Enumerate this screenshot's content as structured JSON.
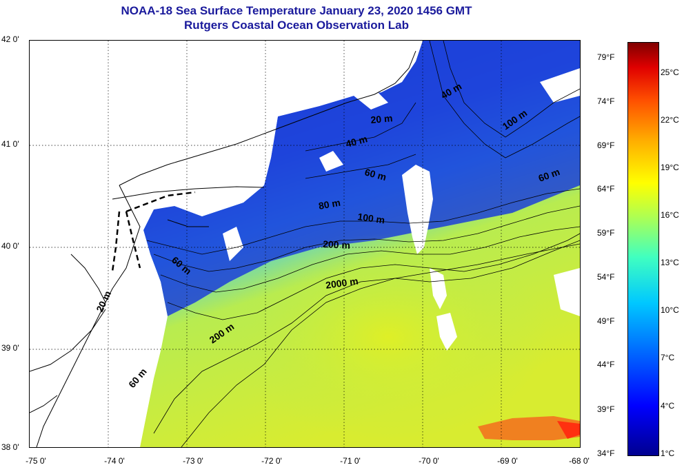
{
  "title": "NOAA-18 Sea Surface Temperature January 23, 2020 1456 GMT",
  "subtitle": "Rutgers Coastal Ocean Observation Lab",
  "lat_labels": [
    "42 0'",
    "41 0'",
    "40 0'",
    "39 0'",
    "38 0'"
  ],
  "lon_labels": [
    "-75 0'",
    "-74 0'",
    "-73 0'",
    "-72 0'",
    "-71 0'",
    "-70 0'",
    "-69 0'",
    "-68 0'"
  ],
  "colorbar": {
    "fahrenheit": [
      "79°F",
      "74°F",
      "69°F",
      "64°F",
      "59°F",
      "54°F",
      "49°F",
      "44°F",
      "39°F",
      "34°F"
    ],
    "celsius": [
      "25°C",
      "22°C",
      "19°C",
      "16°C",
      "13°C",
      "10°C",
      "7°C",
      "4°C",
      "1°C"
    ]
  },
  "contour_labels": [
    "40 m",
    "20 m",
    "100 m",
    "40 m",
    "60 m",
    "60 m",
    "80 m",
    "100 m",
    "200 m",
    "2000 m",
    "60 m",
    "20 m",
    "200 m",
    "60 m"
  ],
  "colors": {
    "title": "#1a1a9c",
    "cold": "#1a3cd8",
    "mid": "#2f8ef0",
    "warm": "#d8ec3a",
    "hot": "#ff7010"
  }
}
